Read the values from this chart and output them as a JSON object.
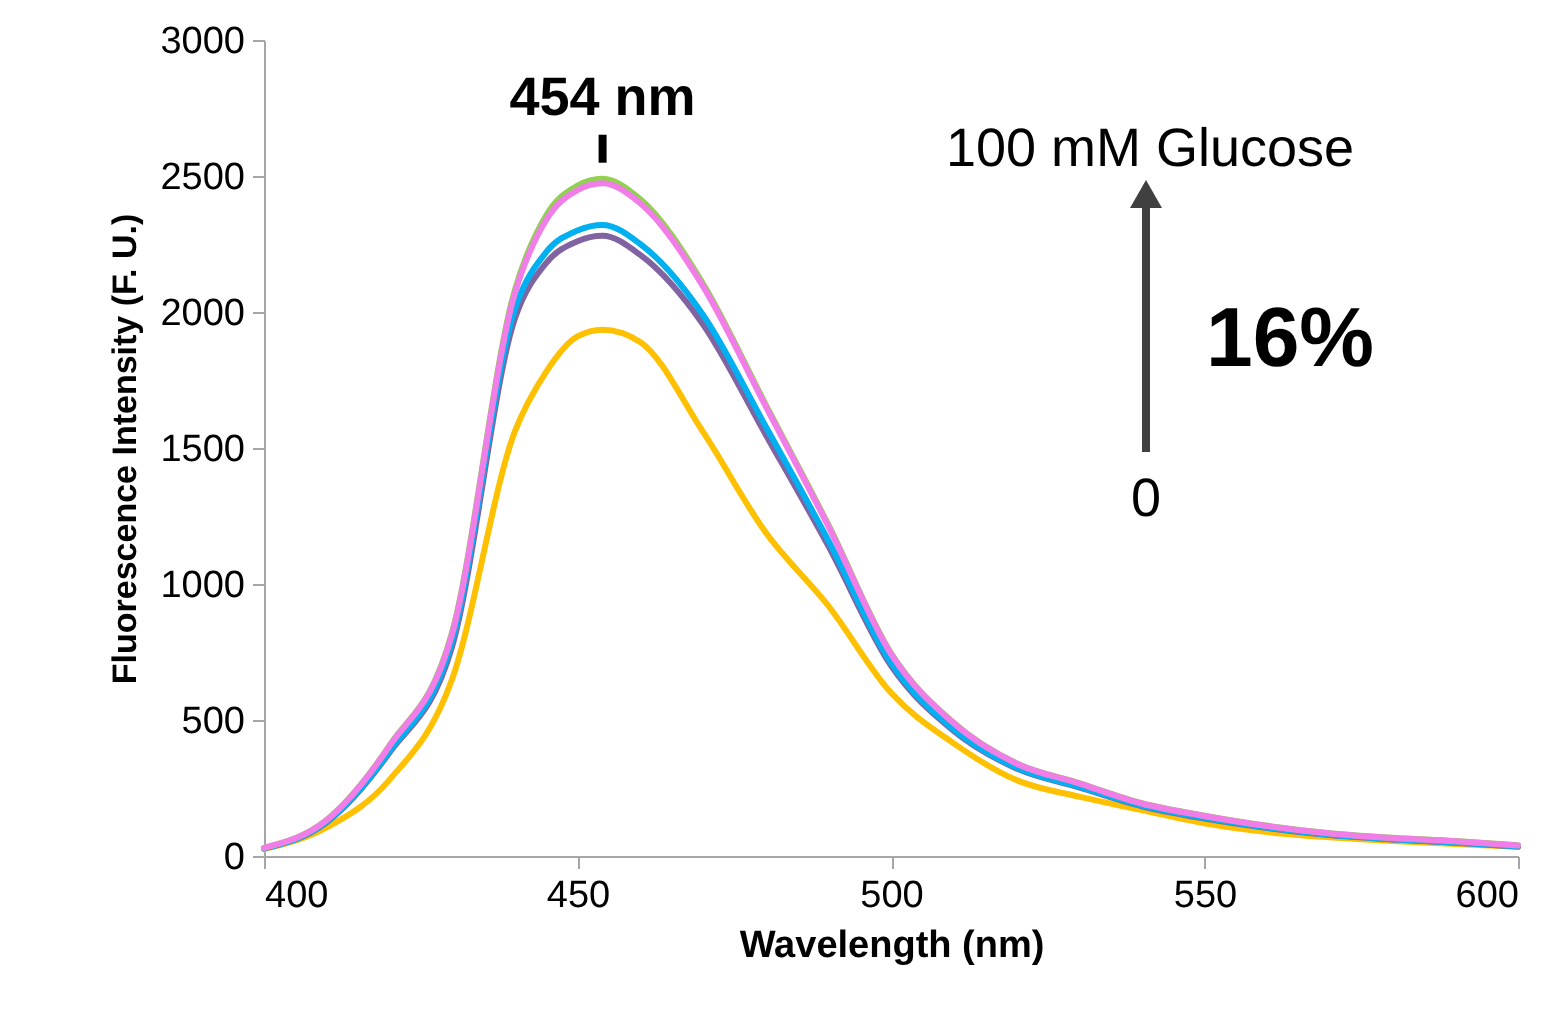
{
  "chart_data": {
    "type": "line",
    "xlabel": "Wavelength (nm)",
    "ylabel": "Fluorescence Intensity (F. U.)",
    "x": [
      400,
      410,
      420,
      430,
      440,
      445,
      450,
      454,
      460,
      470,
      480,
      490,
      500,
      510,
      520,
      530,
      540,
      550,
      560,
      570,
      580,
      590,
      600
    ],
    "series": [
      {
        "color": "#ffc000",
        "values": [
          25,
          105,
          280,
          650,
          1560,
          1780,
          1910,
          1935,
          1890,
          1560,
          1190,
          920,
          600,
          414,
          279,
          218,
          169,
          120,
          88,
          69,
          55,
          44,
          34
        ]
      },
      {
        "color": "#8064a2",
        "values": [
          28,
          124,
          380,
          770,
          1975,
          2180,
          2260,
          2280,
          2210,
          1955,
          1550,
          1140,
          700,
          460,
          322,
          252,
          183,
          138,
          103,
          77,
          61,
          49,
          35
        ]
      },
      {
        "color": "#00b0f0",
        "values": [
          28,
          125,
          385,
          790,
          2010,
          2220,
          2300,
          2320,
          2250,
          1990,
          1580,
          1160,
          710,
          465,
          325,
          255,
          185,
          140,
          104,
          78,
          62,
          50,
          36
        ]
      },
      {
        "color": "#92d050",
        "values": [
          30,
          133,
          406,
          822,
          2080,
          2355,
          2465,
          2490,
          2415,
          2105,
          1660,
          1218,
          746,
          490,
          341,
          268,
          194,
          148,
          111,
          84,
          67,
          55,
          40
        ]
      },
      {
        "color": "#f17ee8",
        "values": [
          30,
          132,
          404,
          816,
          2068,
          2338,
          2448,
          2473,
          2400,
          2095,
          1654,
          1213,
          743,
          488,
          340,
          267,
          193,
          147,
          110,
          83,
          66,
          54,
          39
        ]
      }
    ],
    "xlim": [
      400,
      600
    ],
    "xticks": [
      400,
      450,
      500,
      550,
      600
    ],
    "ylim": [
      0,
      3000
    ],
    "yticks": [
      0,
      500,
      1000,
      1500,
      2000,
      2500,
      3000
    ],
    "annotations": [
      {
        "text": "454 nm",
        "x": 454,
        "y": 2490
      },
      "100 mM Glucose",
      "0",
      "16%"
    ],
    "line_style": "solid"
  }
}
